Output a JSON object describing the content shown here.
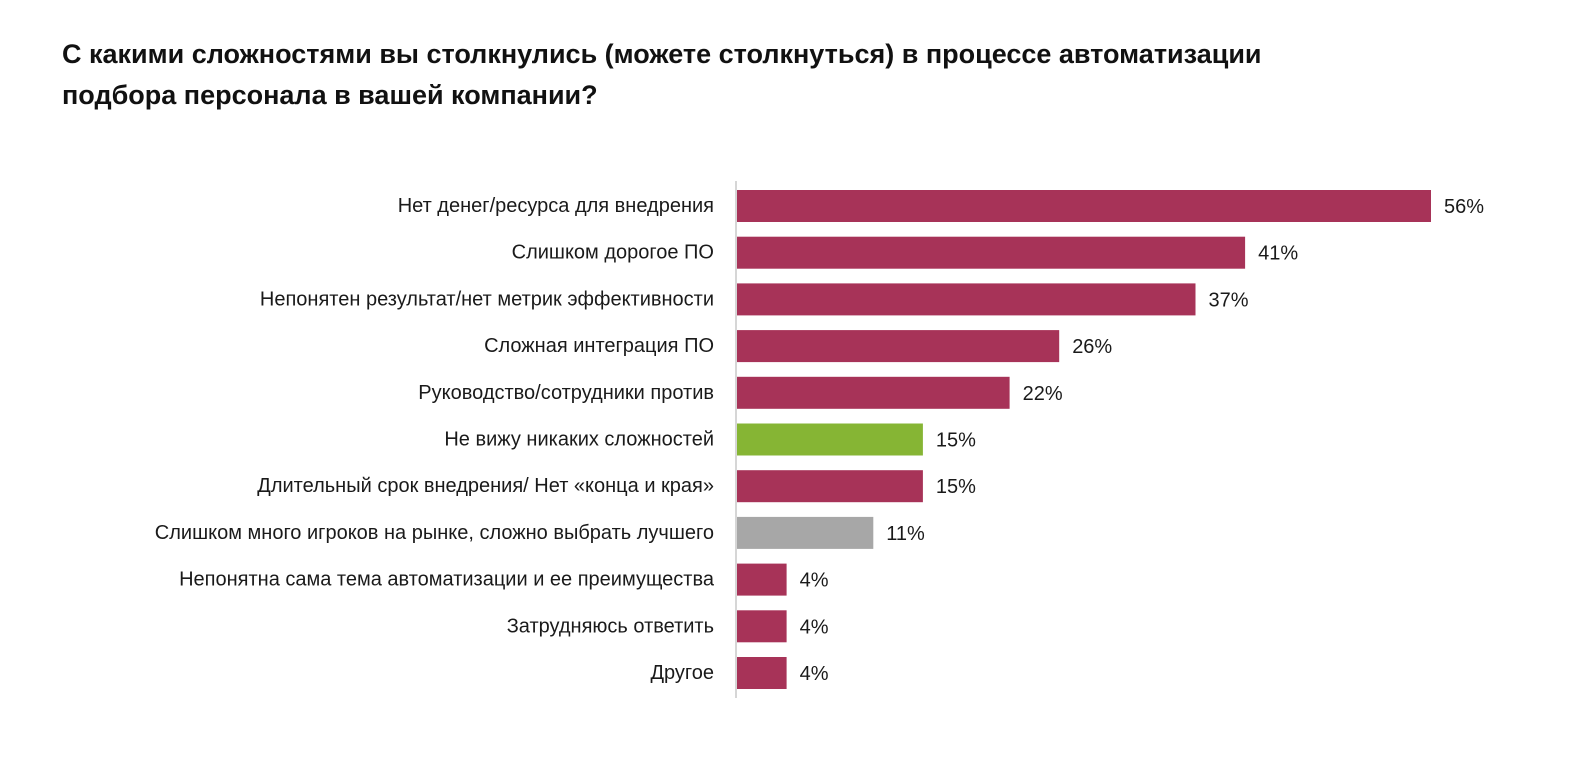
{
  "title_lines": [
    "С какими сложностями вы столкнулись (можете столкнуться) в процессе автоматизации",
    "подбора персонала в вашей компании?"
  ],
  "colors": {
    "default_bar": "#a73358",
    "highlight_bar": "#86b534",
    "neutral_bar": "#a7a7a7",
    "axis": "#c8c8c8"
  },
  "chart_data": {
    "type": "bar",
    "orientation": "horizontal",
    "title": "С какими сложностями вы столкнулись (можете столкнуться) в процессе автоматизации подбора персонала в вашей компании?",
    "xlabel": "",
    "ylabel": "",
    "xlim": [
      0,
      56
    ],
    "grid": false,
    "legend": "none",
    "unit": "%",
    "categories": [
      "Нет денег/ресурса для внедрения",
      "Слишком дорогое ПО",
      "Непонятен результат/нет метрик эффективности",
      "Сложная интеграция ПО",
      "Руководство/сотрудники против",
      "Не вижу никаких сложностей",
      "Длительный срок внедрения/ Нет «конца и края»",
      "Слишком много игроков на рынке, сложно выбрать лучшего",
      "Непонятна сама тема автоматизации и ее преимущества",
      "Затрудняюсь ответить",
      "Другое"
    ],
    "values": [
      56,
      41,
      37,
      26,
      22,
      15,
      15,
      11,
      4,
      4,
      4
    ],
    "value_labels": [
      "56%",
      "41%",
      "37%",
      "26%",
      "22%",
      "15%",
      "15%",
      "11%",
      "4%",
      "4%",
      "4%"
    ],
    "bar_colors": [
      "default",
      "default",
      "default",
      "default",
      "default",
      "highlight",
      "default",
      "neutral",
      "default",
      "default",
      "default"
    ]
  }
}
